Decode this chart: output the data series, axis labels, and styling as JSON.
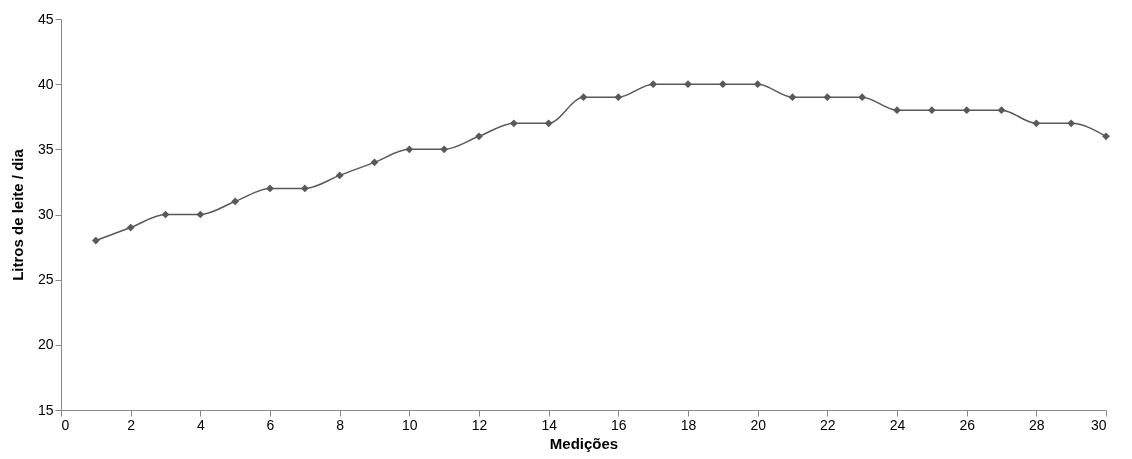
{
  "chart_data": {
    "type": "line",
    "xlabel": "Medições",
    "ylabel": "Litros de leite / dia",
    "x": [
      1,
      2,
      3,
      4,
      5,
      6,
      7,
      8,
      9,
      10,
      11,
      12,
      13,
      14,
      15,
      16,
      17,
      18,
      19,
      20,
      21,
      22,
      23,
      24,
      25,
      26,
      27,
      28,
      29,
      30
    ],
    "series": [
      {
        "color": "#595959",
        "values": [
          28,
          29,
          30,
          30,
          31,
          32,
          32,
          33,
          34,
          35,
          35,
          36,
          37,
          37,
          39,
          39,
          40,
          40,
          40,
          40,
          39,
          39,
          39,
          38,
          38,
          38,
          38,
          37,
          37,
          36
        ]
      }
    ],
    "xlim": [
      0,
      30
    ],
    "xticks": [
      0,
      2,
      4,
      6,
      8,
      10,
      12,
      14,
      16,
      18,
      20,
      22,
      24,
      26,
      28,
      30
    ],
    "ylim": [
      15,
      45
    ],
    "yticks": [
      15,
      20,
      25,
      30,
      35,
      40,
      45
    ],
    "grid": false,
    "marker": "diamond",
    "line_style": "solid"
  }
}
